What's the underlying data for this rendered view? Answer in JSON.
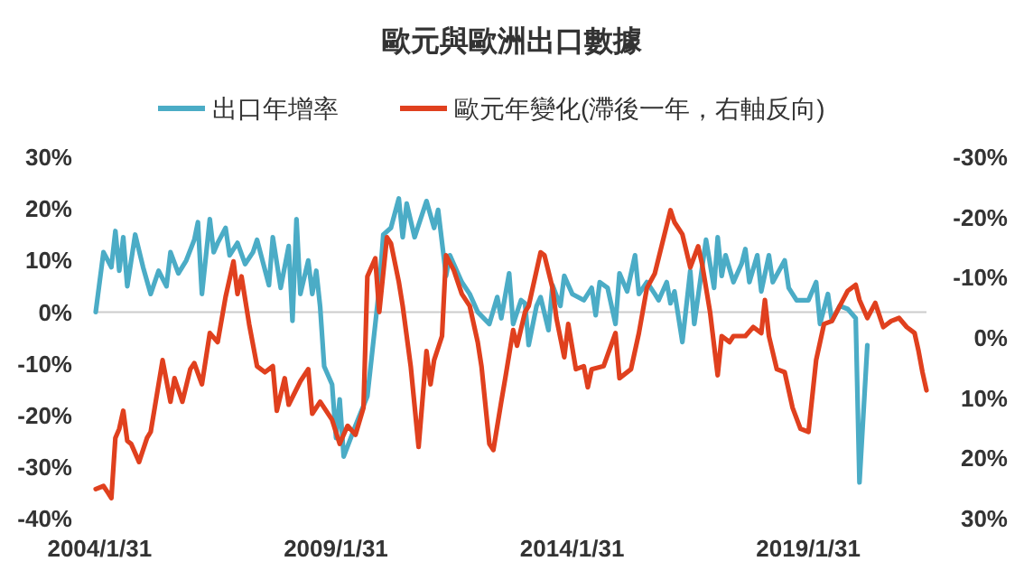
{
  "chart_data": {
    "type": "line",
    "title": "歐元與歐洲出口數據",
    "legend": "top",
    "xlim": [
      "2004-01",
      "2021-08"
    ],
    "xticks": [
      {
        "value": "2004-01-31",
        "label": "2004/1/31"
      },
      {
        "value": "2009-01-31",
        "label": "2009/1/31"
      },
      {
        "value": "2014-01-31",
        "label": "2014/1/31"
      },
      {
        "value": "2019-01-31",
        "label": "2019/1/31"
      }
    ],
    "ylim": [
      -40,
      30
    ],
    "yticks": [
      {
        "value": 30,
        "label": "30%"
      },
      {
        "value": 20,
        "label": "20%"
      },
      {
        "value": 10,
        "label": "10%"
      },
      {
        "value": 0,
        "label": "0%"
      },
      {
        "value": -10,
        "label": "-10%"
      },
      {
        "value": -20,
        "label": "-20%"
      },
      {
        "value": -30,
        "label": "-30%"
      },
      {
        "value": -40,
        "label": "-40%"
      }
    ],
    "y2lim": [
      30,
      -30
    ],
    "y2ticks": [
      {
        "value": -30,
        "label": "-30%"
      },
      {
        "value": -20,
        "label": "-20%"
      },
      {
        "value": -10,
        "label": "-10%"
      },
      {
        "value": 0,
        "label": "0%"
      },
      {
        "value": 10,
        "label": "10%"
      },
      {
        "value": 20,
        "label": "20%"
      },
      {
        "value": 30,
        "label": "30%"
      }
    ],
    "ref_lines": [
      {
        "axis": "y",
        "value": 0,
        "color": "#cccccc"
      }
    ],
    "series": [
      {
        "name": "出口年增率",
        "color": "#4bacc6",
        "x": [
          "2004-01",
          "2004-03",
          "2004-05",
          "2004-06",
          "2004-07",
          "2004-08",
          "2004-09",
          "2004-11",
          "2005-01",
          "2005-03",
          "2005-05",
          "2005-07",
          "2005-08",
          "2005-10",
          "2005-12",
          "2006-02",
          "2006-03",
          "2006-04",
          "2006-06",
          "2006-07",
          "2006-08",
          "2006-10",
          "2006-11",
          "2007-01",
          "2007-03",
          "2007-05",
          "2007-06",
          "2007-09",
          "2007-10",
          "2007-12",
          "2008-02",
          "2008-03",
          "2008-04",
          "2008-05",
          "2008-07",
          "2008-08",
          "2008-09",
          "2008-10",
          "2008-11",
          "2009-01",
          "2009-02",
          "2009-03",
          "2009-04",
          "2009-07",
          "2009-10",
          "2010-01",
          "2010-02",
          "2010-04",
          "2010-06",
          "2010-07",
          "2010-08",
          "2010-10",
          "2011-01",
          "2011-03",
          "2011-04",
          "2011-06",
          "2011-07",
          "2011-10",
          "2011-12",
          "2012-02",
          "2012-05",
          "2012-07",
          "2012-08",
          "2012-10",
          "2012-11",
          "2013-01",
          "2013-02",
          "2013-03",
          "2013-05",
          "2013-06",
          "2013-08",
          "2013-09",
          "2013-11",
          "2013-12",
          "2014-02",
          "2014-05",
          "2014-07",
          "2014-08",
          "2014-09",
          "2014-11",
          "2015-01",
          "2015-02",
          "2015-04",
          "2015-06",
          "2015-07",
          "2015-09",
          "2015-11",
          "2015-12",
          "2016-02",
          "2016-03",
          "2016-04",
          "2016-06",
          "2016-08",
          "2016-09",
          "2016-11",
          "2016-12",
          "2017-02",
          "2017-03",
          "2017-04",
          "2017-05",
          "2017-07",
          "2017-09",
          "2017-10",
          "2017-11",
          "2018-01",
          "2018-02",
          "2018-04",
          "2018-05",
          "2018-08",
          "2018-09",
          "2018-11",
          "2019-02",
          "2019-04",
          "2019-05",
          "2019-07",
          "2019-08",
          "2019-10",
          "2019-12",
          "2020-02",
          "2020-03",
          "2020-05"
        ],
        "values": [
          0,
          11.6,
          8.7,
          15.7,
          8,
          14.5,
          5,
          15,
          8.7,
          3.5,
          8,
          5,
          11.6,
          7.5,
          10,
          14,
          17.4,
          3.5,
          18,
          11.6,
          13.4,
          16.3,
          11,
          13.4,
          9.3,
          11.6,
          14,
          5.2,
          14.5,
          4.7,
          12.8,
          -1.7,
          18,
          3.5,
          10,
          3.5,
          8,
          1,
          -10.5,
          -14,
          -24.4,
          -16.9,
          -28,
          -22,
          -16.3,
          4.7,
          15,
          16.3,
          22,
          14.5,
          21,
          14.5,
          21.5,
          16.3,
          19.8,
          7,
          11,
          5.8,
          3.5,
          0,
          -2.3,
          2.9,
          -1.2,
          7.5,
          -2.3,
          2.3,
          1.7,
          -6.4,
          1.2,
          2.9,
          -3.5,
          5.2,
          1.2,
          7,
          3.5,
          2.3,
          4.7,
          -0.6,
          5.8,
          4.7,
          -2.3,
          7.5,
          4,
          11,
          3.5,
          5.8,
          3.5,
          2.3,
          5.8,
          1.7,
          4,
          -5.8,
          8,
          -2.3,
          8.7,
          14,
          4.7,
          14.5,
          7,
          11,
          5.8,
          9.3,
          12.2,
          5.8,
          11,
          4,
          11,
          5.8,
          10,
          4.7,
          2.3,
          2.3,
          5.8,
          -2.3,
          3.5,
          -1.7,
          1.2,
          0.6,
          -1.2,
          -33,
          -6.4
        ]
      },
      {
        "name": "歐元年變化(滯後一年，右軸反向)",
        "color": "#e0401e",
        "axis": "y2",
        "x": [
          "2004-01",
          "2004-03",
          "2004-04",
          "2004-05",
          "2004-06",
          "2004-07",
          "2004-08",
          "2004-09",
          "2004-10",
          "2004-12",
          "2005-02",
          "2005-03",
          "2005-04",
          "2005-06",
          "2005-08",
          "2005-09",
          "2005-11",
          "2006-01",
          "2006-02",
          "2006-04",
          "2006-06",
          "2006-08",
          "2006-10",
          "2006-12",
          "2007-01",
          "2007-02",
          "2007-04",
          "2007-06",
          "2007-08",
          "2007-10",
          "2007-11",
          "2008-01",
          "2008-02",
          "2008-05",
          "2008-07",
          "2008-08",
          "2008-10",
          "2009-01",
          "2009-03",
          "2009-05",
          "2009-07",
          "2009-09",
          "2009-10",
          "2009-12",
          "2010-01",
          "2010-03",
          "2010-04",
          "2010-06",
          "2010-07",
          "2010-09",
          "2010-11",
          "2011-01",
          "2011-02",
          "2011-03",
          "2011-05",
          "2011-06",
          "2011-08",
          "2011-10",
          "2011-12",
          "2012-02",
          "2012-03",
          "2012-05",
          "2012-06",
          "2012-08",
          "2012-09",
          "2012-11",
          "2012-12",
          "2013-02",
          "2013-03",
          "2013-06",
          "2013-07",
          "2013-09",
          "2013-10",
          "2013-12",
          "2014-01",
          "2014-03",
          "2014-05",
          "2014-06",
          "2014-07",
          "2014-10",
          "2015-01",
          "2015-02",
          "2015-05",
          "2015-07",
          "2015-09",
          "2015-11",
          "2016-03",
          "2016-04",
          "2016-06",
          "2016-08",
          "2016-10",
          "2016-11",
          "2017-01",
          "2017-03",
          "2017-04",
          "2017-06",
          "2017-07",
          "2017-10",
          "2017-12",
          "2018-02",
          "2018-03",
          "2018-04",
          "2018-06",
          "2018-08",
          "2018-10",
          "2018-12",
          "2019-02",
          "2019-04",
          "2019-06",
          "2019-08",
          "2019-10",
          "2019-12",
          "2020-02",
          "2020-03",
          "2020-05",
          "2020-07",
          "2020-09",
          "2020-11",
          "2021-01",
          "2021-03",
          "2021-05",
          "2021-06",
          "2021-07",
          "2021-08"
        ],
        "values": [
          25.1,
          24.6,
          25.6,
          26.6,
          16.6,
          15.1,
          12.1,
          17.1,
          17.6,
          20.6,
          16.6,
          15.6,
          11.6,
          3.7,
          10.6,
          6.7,
          10.6,
          5.2,
          4.2,
          7.7,
          -0.8,
          0.7,
          -6.8,
          -12.7,
          -7.3,
          -10.2,
          -2.3,
          4.7,
          5.7,
          4.7,
          12.1,
          6.7,
          11.1,
          7.2,
          5.2,
          12.6,
          10.6,
          13.6,
          17.6,
          14.6,
          16.1,
          11.6,
          -10.2,
          -13.2,
          -4.3,
          -16.7,
          -15.7,
          -9.3,
          -5.3,
          4.7,
          18.1,
          2.2,
          7.7,
          3.7,
          -0.3,
          -13.7,
          -11.2,
          -7.3,
          -5.3,
          0.7,
          4.7,
          17.6,
          18.6,
          10.6,
          6.7,
          -1.3,
          1.3,
          -4.3,
          -5.3,
          -14.2,
          -13.7,
          -8.3,
          -3.3,
          3.2,
          -2.3,
          5.2,
          4.7,
          8.2,
          5.2,
          4.7,
          -0.8,
          6.7,
          5.2,
          -0.8,
          -8.3,
          -10.7,
          -21.2,
          -19.2,
          -17.2,
          -11.7,
          -15.2,
          -12.2,
          -4.3,
          6.2,
          -0.3,
          0.7,
          -0.3,
          -0.3,
          -1.8,
          -0.8,
          -6.3,
          -0.3,
          5.2,
          5.7,
          11.6,
          15.1,
          15.6,
          3.7,
          -2.3,
          -2.8,
          -5.3,
          -7.8,
          -8.8,
          -6.3,
          -3.3,
          -5.8,
          -1.8,
          -2.8,
          -3.3,
          -1.8,
          -0.8,
          2.2,
          5.7,
          8.7
        ]
      }
    ]
  }
}
